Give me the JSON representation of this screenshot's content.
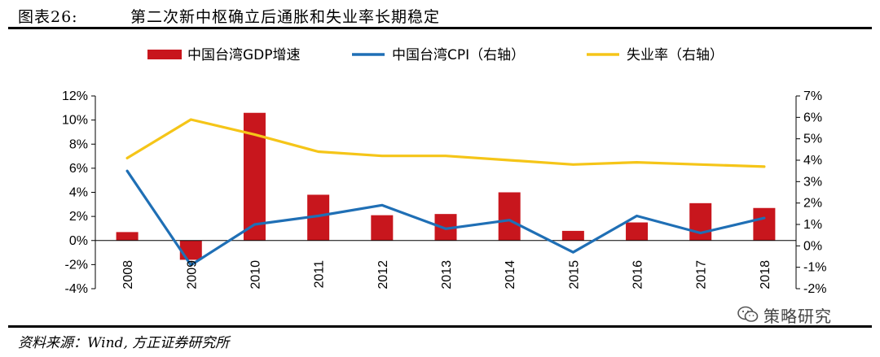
{
  "header": {
    "figure_label": "图表26:",
    "title": "第二次新中枢确立后通胀和失业率长期稳定"
  },
  "footer": {
    "source": "资料来源：Wind, 方正证券研究所",
    "watermark": "策略研究"
  },
  "colors": {
    "gdp": "#c8161d",
    "cpi": "#1f6fb5",
    "unemployment": "#f5c518",
    "axis": "#000000"
  },
  "chart_data": {
    "type": "bar",
    "title": "第二次新中枢确立后通胀和失业率长期稳定",
    "categories": [
      "2008",
      "2009",
      "2010",
      "2011",
      "2012",
      "2013",
      "2014",
      "2015",
      "2016",
      "2017",
      "2018"
    ],
    "left_axis": {
      "ylim": [
        -4,
        12
      ],
      "ticks": [
        -4,
        -2,
        0,
        2,
        4,
        6,
        8,
        10,
        12
      ],
      "tick_labels": [
        "-4%",
        "-2%",
        "0%",
        "2%",
        "4%",
        "6%",
        "8%",
        "10%",
        "12%"
      ]
    },
    "right_axis": {
      "ylim": [
        -2,
        7
      ],
      "ticks": [
        -2,
        -1,
        0,
        1,
        2,
        3,
        4,
        5,
        6,
        7
      ],
      "tick_labels": [
        "-2%",
        "-1%",
        "0%",
        "1%",
        "2%",
        "3%",
        "4%",
        "5%",
        "6%",
        "7%"
      ]
    },
    "series": [
      {
        "name": "中国台湾GDP增速",
        "type": "bar",
        "axis": "left",
        "values": [
          0.7,
          -1.6,
          10.6,
          3.8,
          2.1,
          2.2,
          4.0,
          0.8,
          1.5,
          3.1,
          2.7
        ]
      },
      {
        "name": "中国台湾CPI（右轴）",
        "type": "line",
        "axis": "right",
        "values": [
          3.5,
          -0.9,
          1.0,
          1.4,
          1.9,
          0.8,
          1.2,
          -0.3,
          1.4,
          0.6,
          1.3
        ]
      },
      {
        "name": "失业率（右轴）",
        "type": "line",
        "axis": "right",
        "values": [
          4.1,
          5.9,
          5.2,
          4.4,
          4.2,
          4.2,
          4.0,
          3.8,
          3.9,
          3.8,
          3.7
        ]
      }
    ],
    "legend_position": "top"
  }
}
